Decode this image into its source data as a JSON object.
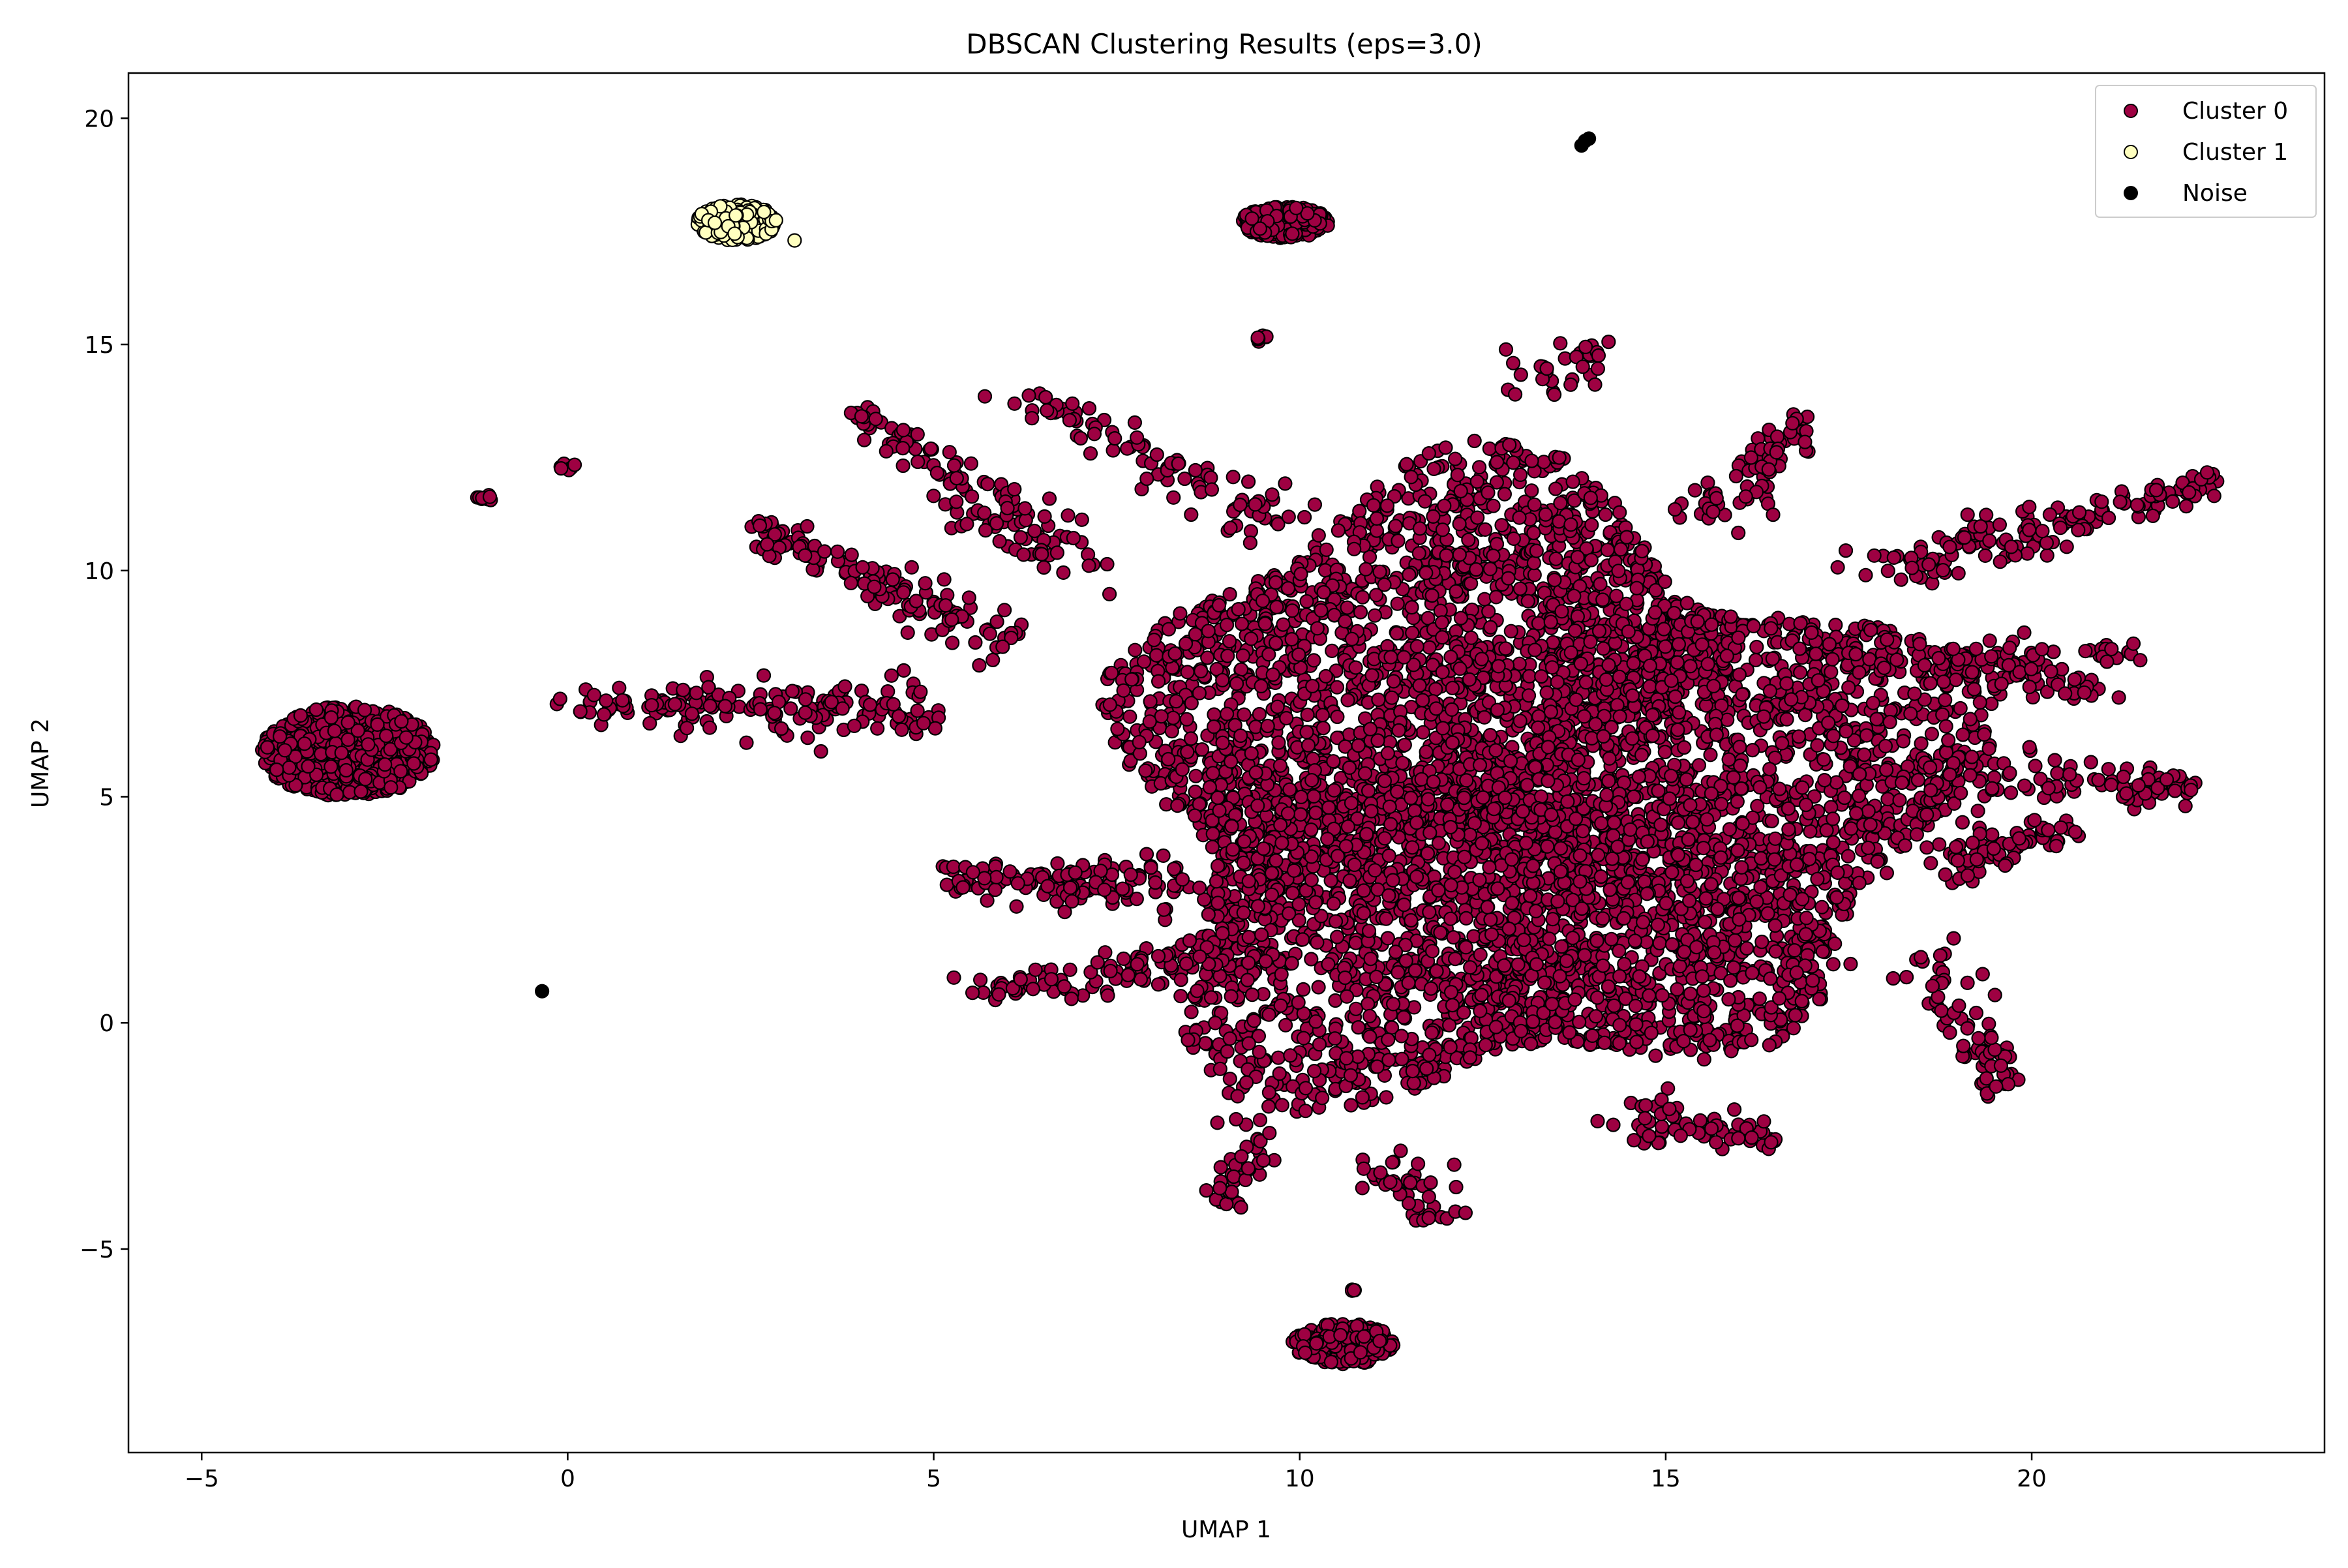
{
  "chart_data": {
    "type": "scatter",
    "title": "DBSCAN Clustering Results (eps=3.0)",
    "xlabel": "UMAP 1",
    "ylabel": "UMAP 2",
    "xlim": [
      -6.0,
      24.0
    ],
    "ylim": [
      -9.5,
      21.0
    ],
    "xticks": [
      -5,
      0,
      5,
      10,
      15,
      20
    ],
    "yticks": [
      -5,
      0,
      5,
      10,
      15,
      20
    ],
    "xtick_labels": [
      "−5",
      "0",
      "5",
      "10",
      "15",
      "20"
    ],
    "ytick_labels": [
      "−5",
      "0",
      "5",
      "10",
      "15",
      "20"
    ],
    "grid": false,
    "legend_position": "top-right",
    "series": [
      {
        "name": "Cluster 0",
        "color": "#9e0142",
        "edgecolor": "#000000",
        "regions": [
          {
            "shape": "main-blob",
            "center": [
              13.0,
              5.0
            ],
            "radius": [
              5.5,
              6.5
            ],
            "count": 5200
          },
          {
            "shape": "blob",
            "center": [
              -3.0,
              6.0
            ],
            "radius": [
              1.2,
              1.0
            ],
            "count": 700
          },
          {
            "shape": "blob",
            "center": [
              9.8,
              17.7
            ],
            "radius": [
              0.6,
              0.35
            ],
            "count": 200
          },
          {
            "shape": "blob",
            "center": [
              10.6,
              -7.1
            ],
            "radius": [
              0.7,
              0.45
            ],
            "count": 220
          },
          {
            "shape": "arm",
            "from": [
              5.0,
              7.0
            ],
            "to": [
              0.0,
              7.0
            ],
            "count": 160
          },
          {
            "shape": "arm",
            "from": [
              6.0,
              8.5
            ],
            "to": [
              2.5,
              11.0
            ],
            "count": 130
          },
          {
            "shape": "arm",
            "from": [
              7.0,
              10.0
            ],
            "to": [
              4.0,
              13.5
            ],
            "count": 120
          },
          {
            "shape": "arm",
            "from": [
              8.5,
              3.0
            ],
            "to": [
              5.0,
              3.2
            ],
            "count": 130
          },
          {
            "shape": "arm",
            "from": [
              9.0,
              1.5
            ],
            "to": [
              5.5,
              0.7
            ],
            "count": 100
          },
          {
            "shape": "arm",
            "from": [
              10.0,
              11.0
            ],
            "to": [
              6.0,
              14.0
            ],
            "count": 90
          },
          {
            "shape": "arm",
            "from": [
              15.5,
              11.0
            ],
            "to": [
              17.0,
              13.5
            ],
            "count": 70
          },
          {
            "shape": "arm",
            "from": [
              18.0,
              10.0
            ],
            "to": [
              22.5,
              12.0
            ],
            "count": 150
          },
          {
            "shape": "arm",
            "from": [
              18.5,
              8.0
            ],
            "to": [
              21.0,
              7.3
            ],
            "count": 90
          },
          {
            "shape": "arm",
            "from": [
              18.5,
              5.5
            ],
            "to": [
              22.3,
              5.2
            ],
            "count": 110
          },
          {
            "shape": "arm",
            "from": [
              18.5,
              3.5
            ],
            "to": [
              20.5,
              4.3
            ],
            "count": 70
          },
          {
            "shape": "arm",
            "from": [
              18.5,
              1.5
            ],
            "to": [
              19.6,
              -1.5
            ],
            "count": 70
          },
          {
            "shape": "arm",
            "from": [
              14.5,
              -2.0
            ],
            "to": [
              16.5,
              -2.6
            ],
            "count": 60
          },
          {
            "shape": "arm",
            "from": [
              11.0,
              -3.0
            ],
            "to": [
              12.0,
              -4.4
            ],
            "count": 40
          },
          {
            "shape": "arm",
            "from": [
              9.5,
              -2.0
            ],
            "to": [
              9.0,
              -3.9
            ],
            "count": 40
          },
          {
            "shape": "arm",
            "from": [
              17.0,
              8.0
            ],
            "to": [
              21.5,
              8.2
            ],
            "count": 60
          },
          {
            "shape": "arm",
            "from": [
              13.0,
              14.0
            ],
            "to": [
              14.2,
              15.0
            ],
            "count": 30
          },
          {
            "shape": "blob",
            "center": [
              9.5,
              15.1
            ],
            "radius": [
              0.12,
              0.12
            ],
            "count": 8
          },
          {
            "shape": "blob",
            "center": [
              -1.1,
              11.6
            ],
            "radius": [
              0.15,
              0.08
            ],
            "count": 10
          },
          {
            "shape": "blob",
            "center": [
              0.0,
              12.3
            ],
            "radius": [
              0.12,
              0.08
            ],
            "count": 6
          },
          {
            "shape": "blob",
            "center": [
              10.7,
              -5.9
            ],
            "radius": [
              0.05,
              0.1
            ],
            "count": 4
          }
        ]
      },
      {
        "name": "Cluster 1",
        "color": "#ffffbf",
        "edgecolor": "#000000",
        "regions": [
          {
            "shape": "blob",
            "center": [
              2.3,
              17.7
            ],
            "radius": [
              0.55,
              0.4
            ],
            "count": 260
          }
        ],
        "points": [
          [
            3.1,
            17.3
          ]
        ]
      },
      {
        "name": "Noise",
        "color": "#000000",
        "edgecolor": "#000000",
        "points": [
          [
            13.9,
            19.5
          ],
          [
            13.85,
            19.4
          ],
          [
            13.95,
            19.55
          ],
          [
            -0.35,
            0.7
          ]
        ]
      }
    ]
  }
}
